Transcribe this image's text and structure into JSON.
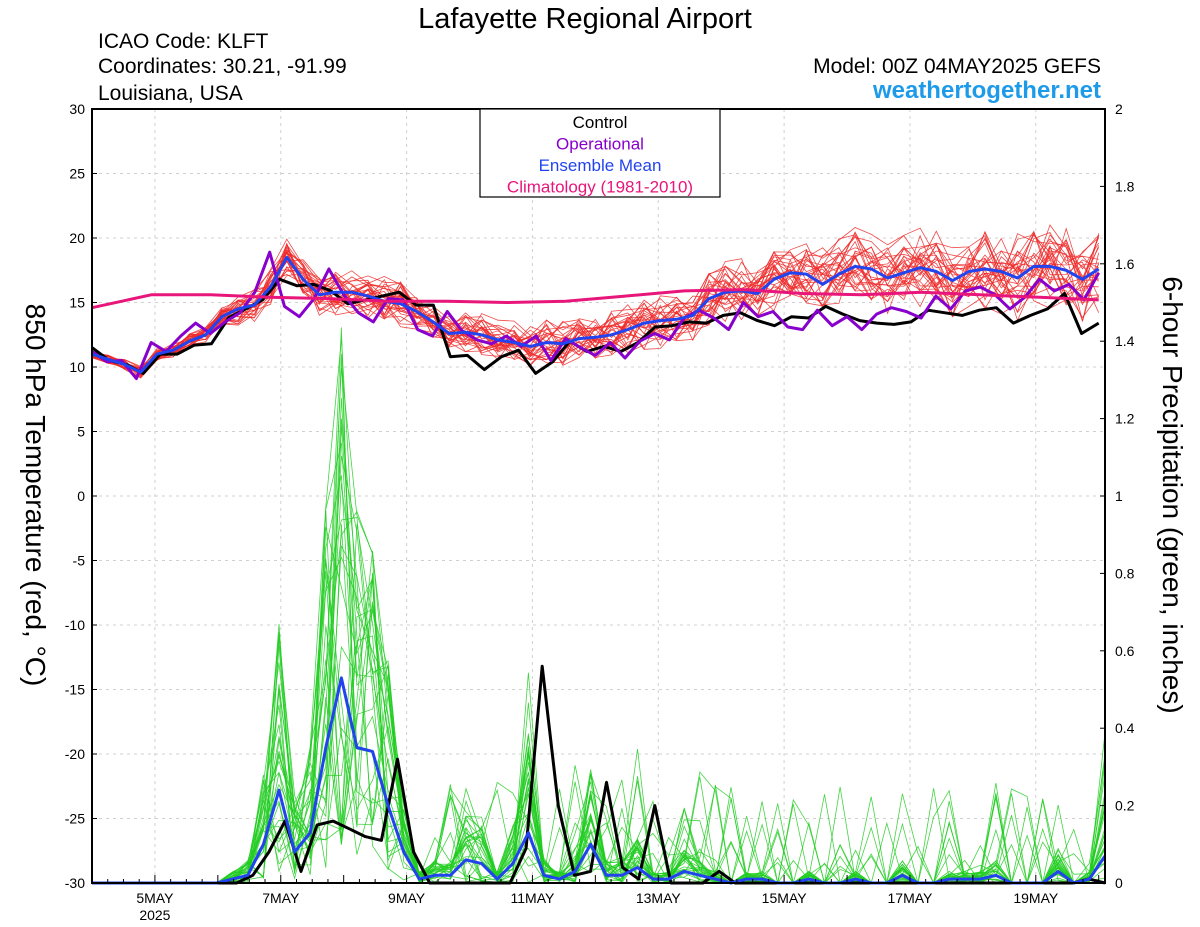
{
  "title": "Lafayette Regional Airport",
  "info": {
    "icao": "ICAO Code: KLFT",
    "coords": "Coordinates: 30.21, -91.99",
    "region": "Louisiana, USA",
    "model": "Model: 00Z 04MAY2025 GEFS",
    "site": "weathertogether.net"
  },
  "colors": {
    "control": "#000000",
    "operational": "#8800cc",
    "mean": "#2244ee",
    "climatology": "#e8157a",
    "members_temp": "#ee2a2a",
    "members_precip": "#22cc22",
    "site": "#1e9be8"
  },
  "chart_data": {
    "type": "line",
    "ylabel": "850 hPa Temperature (red, °C)",
    "y2label": "6-hour Precipitation (green, inches)",
    "ylim": [
      -30,
      30
    ],
    "y2lim": [
      0,
      2
    ],
    "xlim_days": [
      4.0,
      20.1
    ],
    "yticks": [
      "30",
      "25",
      "20",
      "15",
      "10",
      "5",
      "0",
      "-5",
      "-10",
      "-15",
      "-20",
      "-25",
      "-30"
    ],
    "y2ticks": [
      "2",
      "1.8",
      "1.6",
      "1.4",
      "1.2",
      "1",
      "0.8",
      "0.6",
      "0.4",
      "0.2",
      "0"
    ],
    "xticks": [
      {
        "label": "5MAY",
        "sub": "2025",
        "day": 5
      },
      {
        "label": "7MAY",
        "day": 7
      },
      {
        "label": "9MAY",
        "day": 9
      },
      {
        "label": "11MAY",
        "day": 11
      },
      {
        "label": "13MAY",
        "day": 13
      },
      {
        "label": "15MAY",
        "day": 15
      },
      {
        "label": "17MAY",
        "day": 17
      },
      {
        "label": "19MAY",
        "day": 19
      }
    ],
    "legend": {
      "position": "top-center",
      "items": [
        {
          "label": "Control",
          "color": "#000000"
        },
        {
          "label": "Operational",
          "color": "#8800cc"
        },
        {
          "label": "Ensemble Mean",
          "color": "#2244ee"
        },
        {
          "label": "Climatology (1981-2010)",
          "color": "#e8157a"
        }
      ]
    },
    "series": [
      {
        "name": "Control",
        "axis": "temp",
        "values": [
          11.5,
          10.5,
          10.2,
          9.5,
          11,
          11,
          11.7,
          11.8,
          13.8,
          14.5,
          15.2,
          16.8,
          16.3,
          16.4,
          15.9,
          14.9,
          15.2,
          15.5,
          15.8,
          14.8,
          14.8,
          10.8,
          10.9,
          9.8,
          10.8,
          11.3,
          9.5,
          10.4,
          12,
          11.2,
          11.6,
          11.2,
          11.9,
          13.1,
          13.2,
          13.5,
          13.4,
          14,
          14.2,
          13.6,
          13.2,
          13.9,
          13.8,
          14.7,
          14.1,
          13.6,
          13.4,
          13.3,
          13.5,
          14.4,
          14.2,
          14,
          14.4,
          14.6,
          13.4,
          14,
          14.5,
          15.7,
          12.6,
          13.4
        ]
      },
      {
        "name": "Operational",
        "axis": "temp",
        "values": [
          11.2,
          10.4,
          10.5,
          9.1,
          11.9,
          11.2,
          12.4,
          13.4,
          12.6,
          13.5,
          14.2,
          15.8,
          18.9,
          14.7,
          13.9,
          15.3,
          17.6,
          15.6,
          14.2,
          13.5,
          15.3,
          15.2,
          12.9,
          12.4,
          14.3,
          12.8,
          12.1,
          11.8,
          12.4,
          11.6,
          12.4,
          10.5,
          12.2,
          11.5,
          10.9,
          11.9,
          10.7,
          12,
          12.6,
          12.1,
          13.8,
          14.4,
          13.8,
          12.9,
          15,
          13.9,
          14.3,
          13.1,
          12.9,
          14.4,
          13.2,
          13.9,
          12.9,
          14.1,
          14.6,
          14.3,
          13.8,
          15.5,
          14.5,
          15.9,
          16.2,
          15.6,
          14.5,
          15.4,
          16.8,
          15.9,
          16.4,
          15.2,
          17.3
        ]
      },
      {
        "name": "Ensemble Mean",
        "axis": "temp",
        "values": [
          11,
          10.6,
          10.2,
          9.6,
          11,
          11.3,
          12,
          12.5,
          13.9,
          14.5,
          14.8,
          16.2,
          18.5,
          16.8,
          15.6,
          15.8,
          15.8,
          15.5,
          15.1,
          14.9,
          14.3,
          13.5,
          12.6,
          12.7,
          12.5,
          12.1,
          11.9,
          11.6,
          11.9,
          11.8,
          12.2,
          12.3,
          12.5,
          12.9,
          13.4,
          13.6,
          13.7,
          14,
          15.3,
          15.8,
          15.9,
          15.7,
          16.8,
          17.3,
          17.2,
          16.4,
          17.2,
          17.8,
          17.6,
          16.9,
          17.3,
          17.7,
          17.4,
          16.7,
          17.4,
          17.6,
          17.4,
          16.9,
          17.8,
          17.8,
          17.5,
          16.8,
          17.6
        ]
      },
      {
        "name": "Climatology (1981-2010)",
        "axis": "temp",
        "values": [
          14.6,
          15.6,
          15.6,
          15.4,
          15.3,
          15.1,
          15.1,
          15,
          15.1,
          15.5,
          15.9,
          16,
          15.7,
          15.6,
          15.8,
          15.6,
          15.4,
          15.2
        ]
      },
      {
        "name": "Control",
        "axis": "precip",
        "values": [
          0,
          0,
          0,
          0,
          0,
          0,
          0,
          0,
          0,
          0,
          0.02,
          0.08,
          0.16,
          0.03,
          0.15,
          0.16,
          0.14,
          0.12,
          0.11,
          0.32,
          0.08,
          0,
          0,
          0,
          0,
          0,
          0,
          0.09,
          0.56,
          0.2,
          0.02,
          0.03,
          0.26,
          0.04,
          0.01,
          0.2,
          0,
          0,
          0,
          0.03,
          0,
          0,
          0,
          0,
          0,
          0,
          0,
          0,
          0,
          0,
          0,
          0,
          0,
          0,
          0,
          0,
          0,
          0,
          0,
          0,
          0,
          0,
          0.01,
          0
        ]
      },
      {
        "name": "Ensemble Mean",
        "axis": "precip",
        "values": [
          0,
          0,
          0,
          0,
          0,
          0,
          0,
          0,
          0,
          0.01,
          0.02,
          0.1,
          0.24,
          0.08,
          0.13,
          0.35,
          0.53,
          0.35,
          0.34,
          0.2,
          0.08,
          0.01,
          0.02,
          0.02,
          0.06,
          0.05,
          0.01,
          0.05,
          0.13,
          0.02,
          0.01,
          0.03,
          0.1,
          0.02,
          0.02,
          0.04,
          0.01,
          0.01,
          0.03,
          0.02,
          0.01,
          0,
          0.01,
          0.01,
          0,
          0,
          0.01,
          0,
          0,
          0.01,
          0,
          0,
          0.02,
          0,
          0,
          0.01,
          0.01,
          0.01,
          0.02,
          0,
          0,
          0,
          0.03,
          0,
          0.01,
          0.07
        ]
      }
    ]
  }
}
